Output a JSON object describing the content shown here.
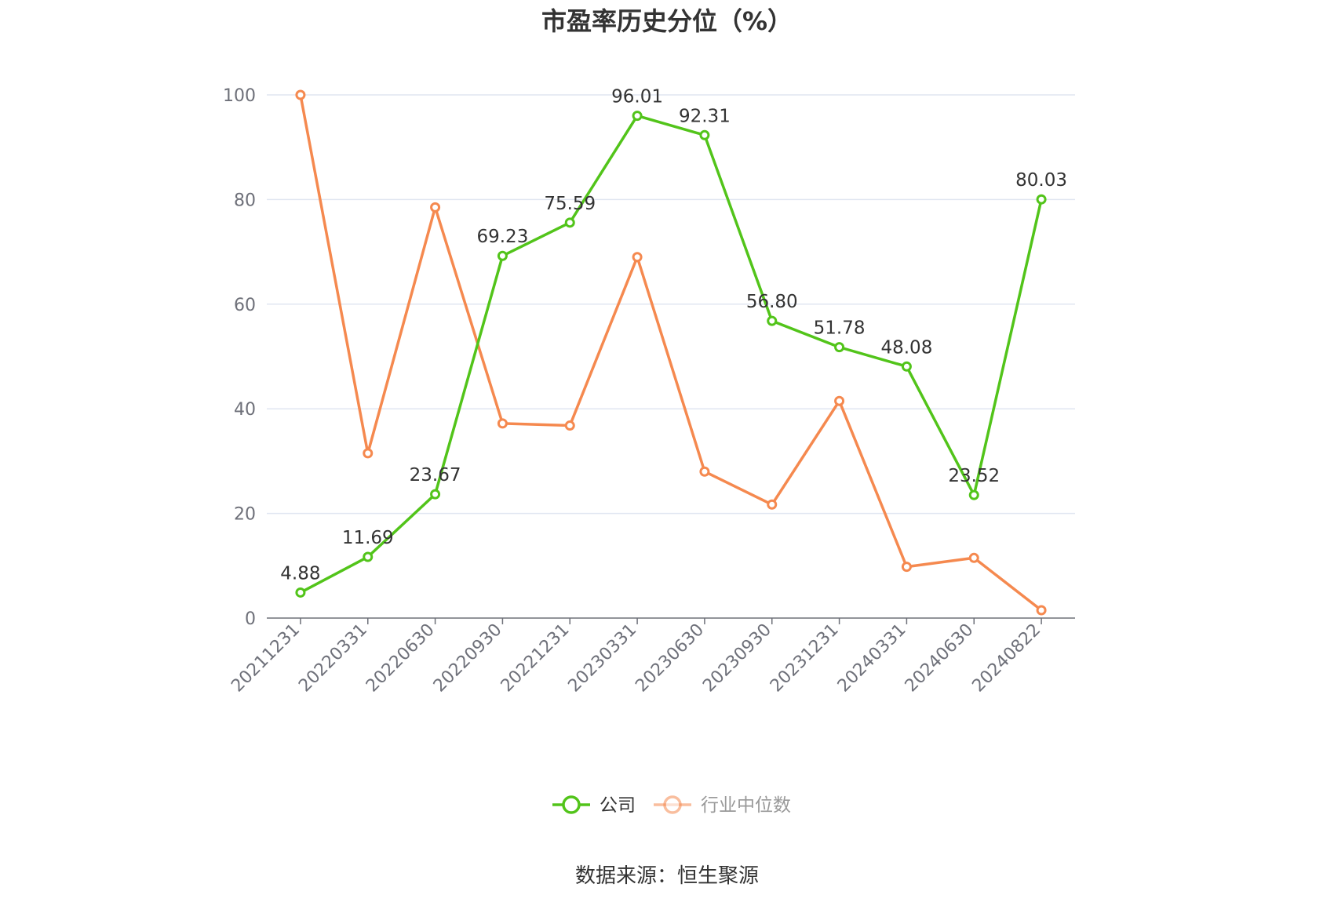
{
  "chart_data": {
    "type": "line",
    "title": "市盈率历史分位（%）",
    "categories": [
      "20211231",
      "20220331",
      "20220630",
      "20220930",
      "20221231",
      "20230331",
      "20230630",
      "20230930",
      "20231231",
      "20240331",
      "20240630",
      "20240822"
    ],
    "y_ticks": [
      "0",
      "20",
      "40",
      "60",
      "80",
      "100"
    ],
    "ylim": [
      0,
      100
    ],
    "grid": true,
    "legend_position": "bottom-center",
    "series": [
      {
        "name": "公司",
        "color": "#52c41a",
        "values": [
          4.88,
          11.69,
          23.67,
          69.23,
          75.59,
          96.01,
          92.31,
          56.8,
          51.78,
          48.08,
          23.52,
          80.03
        ],
        "labels": [
          "4.88",
          "11.69",
          "23.67",
          "69.23",
          "75.59",
          "96.01",
          "92.31",
          "56.80",
          "51.78",
          "48.08",
          "23.52",
          "80.03"
        ]
      },
      {
        "name": "行业中位数",
        "color": "#f5894f",
        "values": [
          100,
          31.5,
          78.5,
          37.2,
          36.8,
          69.0,
          28.0,
          21.7,
          41.5,
          9.8,
          11.5,
          1.5
        ]
      }
    ],
    "source": "数据来源：恒生聚源"
  }
}
